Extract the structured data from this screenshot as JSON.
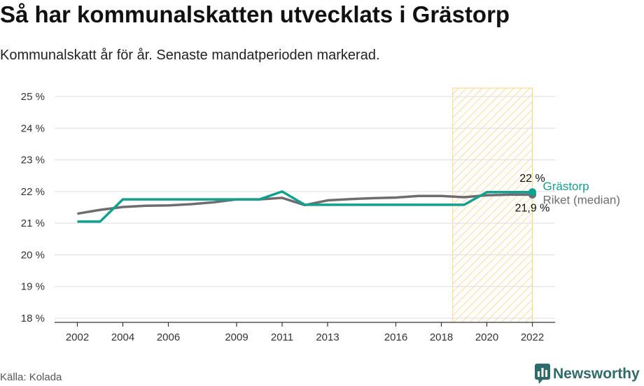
{
  "header": {
    "title": "Så har kommunalskatten utvecklats i Grästorp",
    "subtitle": "Kommunalskatt år för år. Senaste mandatperioden markerad."
  },
  "footer": {
    "source": "Källa: Kolada",
    "brand": "Newsworthy",
    "brand_icon": "newsworthy-chart-icon"
  },
  "chart_data": {
    "type": "line",
    "title": "Så har kommunalskatten utvecklats i Grästorp",
    "subtitle": "Kommunalskatt år för år. Senaste mandatperioden markerad.",
    "xlabel": "",
    "ylabel": "",
    "x": [
      2002,
      2003,
      2004,
      2005,
      2006,
      2007,
      2008,
      2009,
      2010,
      2011,
      2012,
      2013,
      2014,
      2015,
      2016,
      2017,
      2018,
      2019,
      2020,
      2021,
      2022
    ],
    "x_ticks": [
      2002,
      2004,
      2006,
      2009,
      2011,
      2013,
      2016,
      2018,
      2020,
      2022
    ],
    "xlim": [
      2001,
      2023
    ],
    "ylim": [
      18,
      25
    ],
    "y_ticks": [
      18,
      19,
      20,
      21,
      22,
      23,
      24,
      25
    ],
    "y_tick_labels": [
      "18 %",
      "19 %",
      "20 %",
      "21 %",
      "22 %",
      "23 %",
      "24 %",
      "25 %"
    ],
    "grid": true,
    "highlight_period": [
      2018.5,
      2022
    ],
    "series": [
      {
        "name": "Riket (median)",
        "color": "#6e6c70",
        "values": [
          21.3,
          21.42,
          21.51,
          21.55,
          21.56,
          21.6,
          21.66,
          21.75,
          21.75,
          21.8,
          21.57,
          21.72,
          21.76,
          21.79,
          21.81,
          21.86,
          21.86,
          21.82,
          21.88,
          21.9,
          21.9
        ],
        "end_label": "21,9 %"
      },
      {
        "name": "Grästorp",
        "color": "#0fa291",
        "values": [
          21.05,
          21.05,
          21.75,
          21.75,
          21.75,
          21.75,
          21.75,
          21.75,
          21.75,
          22.0,
          21.58,
          21.58,
          21.58,
          21.58,
          21.58,
          21.58,
          21.58,
          21.58,
          21.98,
          21.98,
          21.98
        ],
        "end_label": "22 %"
      }
    ]
  }
}
